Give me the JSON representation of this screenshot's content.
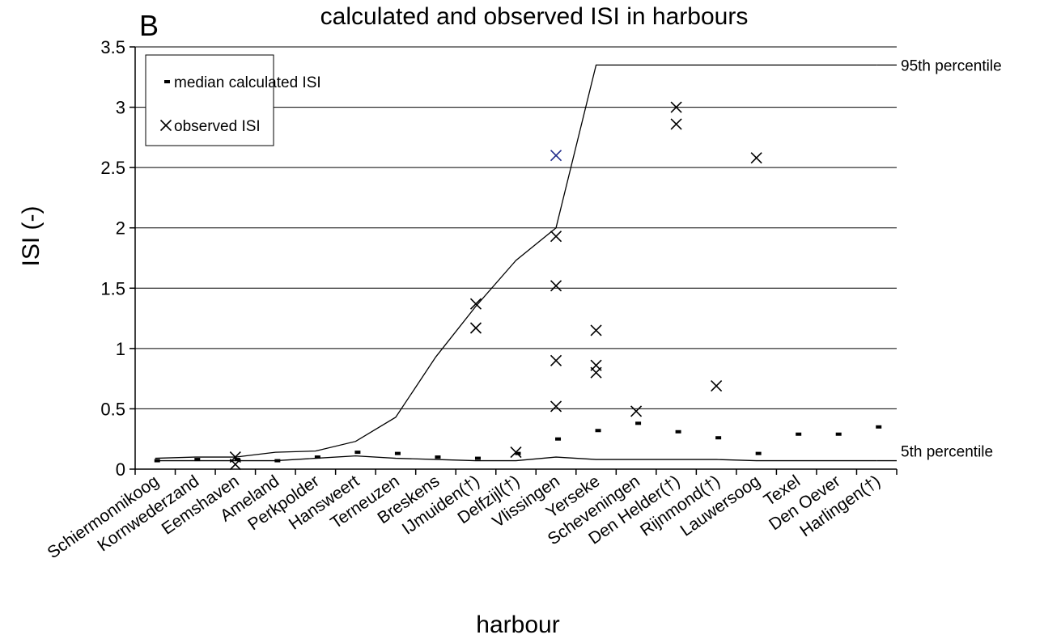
{
  "chart_data": {
    "type": "line",
    "panel_label": "B",
    "title": "calculated and observed ISI in harbours",
    "xlabel": "harbour",
    "ylabel": "ISI (-)",
    "categories": [
      "Schiermonnikoog",
      "Kornwederzand",
      "Eemshaven",
      "Ameland",
      "Perkpolder",
      "Hansweert",
      "Terneuzen",
      "Breskens",
      "IJmuiden(†)",
      "Delfzijl(†)",
      "Vlissingen",
      "Yerseke",
      "Scheveningen",
      "Den Helder(†)",
      "Rijnmond(†)",
      "Lauwersoog",
      "Texel",
      "Den Oever",
      "Harlingen(†)"
    ],
    "ylim": [
      0,
      3.5
    ],
    "yticks": [
      0,
      0.5,
      1,
      1.5,
      2,
      2.5,
      3,
      3.5
    ],
    "grid": true,
    "series": [
      {
        "name": "95th percentile",
        "color": "#000000",
        "style": "line",
        "values": [
          0.09,
          0.1,
          0.1,
          0.14,
          0.15,
          0.23,
          0.43,
          0.93,
          1.35,
          1.73,
          2.0,
          3.35,
          3.35,
          3.35,
          3.35,
          3.35,
          3.35,
          3.35,
          3.35
        ]
      },
      {
        "name": "5th percentile",
        "color": "#000000",
        "style": "line",
        "values": [
          0.07,
          0.07,
          0.07,
          0.07,
          0.09,
          0.11,
          0.09,
          0.08,
          0.07,
          0.07,
          0.1,
          0.08,
          0.08,
          0.08,
          0.08,
          0.07,
          0.07,
          0.07,
          0.07
        ]
      },
      {
        "name": "median calculated ISI",
        "color": "#000000",
        "style": "dash",
        "values": [
          0.07,
          0.08,
          0.08,
          0.07,
          0.1,
          0.14,
          0.13,
          0.1,
          0.09,
          0.13,
          0.25,
          0.32,
          0.38,
          0.31,
          0.26,
          0.13,
          0.29,
          0.29,
          0.35
        ]
      }
    ],
    "observed": {
      "name": "observed ISI",
      "color": "#000000",
      "points": [
        {
          "category": "Eemshaven",
          "value": 0.1
        },
        {
          "category": "Eemshaven",
          "value": 0.04
        },
        {
          "category": "IJmuiden(†)",
          "value": 1.37
        },
        {
          "category": "IJmuiden(†)",
          "value": 1.17
        },
        {
          "category": "Delfzijl(†)",
          "value": 0.14
        },
        {
          "category": "Vlissingen",
          "value": 2.6,
          "color": "#1f2a8a"
        },
        {
          "category": "Vlissingen",
          "value": 1.93
        },
        {
          "category": "Vlissingen",
          "value": 1.52
        },
        {
          "category": "Vlissingen",
          "value": 0.9
        },
        {
          "category": "Vlissingen",
          "value": 0.52
        },
        {
          "category": "Yerseke",
          "value": 1.15
        },
        {
          "category": "Yerseke",
          "value": 0.86
        },
        {
          "category": "Yerseke",
          "value": 0.8
        },
        {
          "category": "Scheveningen",
          "value": 0.48
        },
        {
          "category": "Den Helder(†)",
          "value": 3.0
        },
        {
          "category": "Den Helder(†)",
          "value": 2.86
        },
        {
          "category": "Rijnmond(†)",
          "value": 0.69
        },
        {
          "category": "Lauwersoog",
          "value": 2.58
        }
      ]
    }
  }
}
